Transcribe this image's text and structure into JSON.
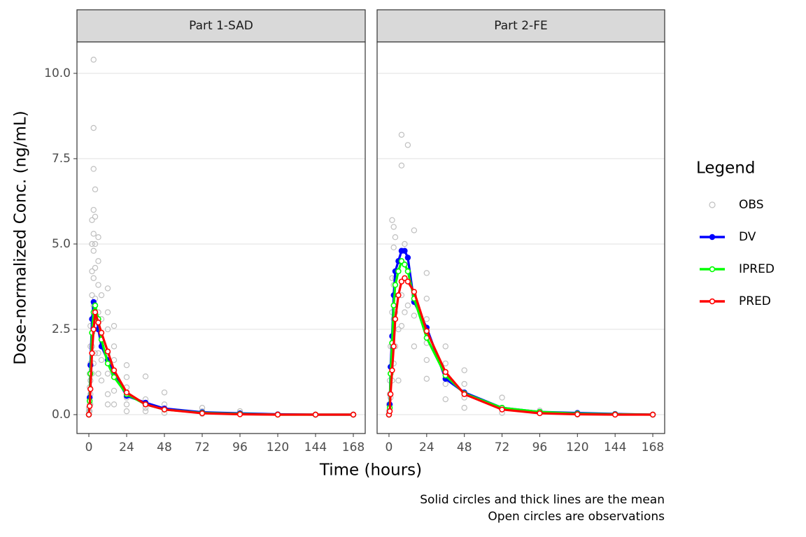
{
  "axes": {
    "x_label": "Time (hours)",
    "y_label": "Dose-normalized Conc. (ng/mL)"
  },
  "legend_title": "Legend",
  "caption": [
    "Solid circles and thick lines are the mean",
    "Open circles are observations"
  ],
  "chart_data": [
    {
      "type": "line",
      "title": "Part 1-SAD",
      "xlim": [
        -7.56,
        175.56
      ],
      "xticks": [
        0,
        24,
        48,
        72,
        96,
        120,
        144,
        168
      ],
      "ylim": [
        -0.553,
        10.92
      ],
      "yticks": [
        {
          "value": 0,
          "label": "0.0"
        },
        2.5,
        {
          "value": 5,
          "label": "5.0"
        },
        7.5,
        {
          "value": 10,
          "label": "10.0"
        }
      ],
      "grid": true,
      "x": [
        0,
        0.5,
        1,
        2,
        3,
        4,
        6,
        8,
        12,
        16,
        24,
        36,
        48,
        72,
        96,
        120,
        144,
        168
      ],
      "series": [
        {
          "name": "DV",
          "color": "#0000ff",
          "marker": "filled",
          "values": [
            0,
            0.5,
            1.45,
            2.8,
            3.3,
            3.2,
            2.5,
            2.0,
            1.6,
            1.2,
            0.55,
            0.35,
            0.18,
            0.07,
            0.04,
            0.01,
            0,
            0
          ]
        },
        {
          "name": "IPRED",
          "color": "#00ff00",
          "marker": "open",
          "values": [
            0,
            0.4,
            1.2,
            2.4,
            3.0,
            3.2,
            2.8,
            2.2,
            1.5,
            1.1,
            0.6,
            0.3,
            0.15,
            0.05,
            0.02,
            0,
            0,
            0
          ]
        },
        {
          "name": "PRED",
          "color": "#ff0000",
          "marker": "open",
          "values": [
            0,
            0.25,
            0.75,
            1.8,
            2.5,
            3.0,
            2.7,
            2.4,
            1.85,
            1.3,
            0.65,
            0.3,
            0.15,
            0.04,
            0.01,
            0,
            0,
            0
          ]
        }
      ],
      "observations": {
        "name": "OBS",
        "color": "#bfbfbf",
        "x": [
          0,
          0,
          0,
          0,
          0,
          0.5,
          0.5,
          0.5,
          0.5,
          0.5,
          1,
          1,
          1,
          1,
          1,
          1,
          2,
          2,
          2,
          2,
          2,
          2,
          2,
          3,
          3,
          3,
          3,
          3,
          3,
          3,
          3,
          3,
          3,
          4,
          4,
          4,
          4,
          4,
          4,
          4,
          6,
          6,
          6,
          6,
          6,
          6,
          6,
          8,
          8,
          8,
          8,
          8,
          12,
          12,
          12,
          12,
          12,
          12,
          12,
          16,
          16,
          16,
          16,
          16,
          16,
          24,
          24,
          24,
          24,
          24,
          24,
          36,
          36,
          36,
          36,
          36,
          48,
          48,
          48,
          48,
          72,
          72,
          72,
          96,
          96,
          120,
          144,
          168
        ],
        "values": [
          0,
          0,
          0,
          0.1,
          0.2,
          0.3,
          0.5,
          0.8,
          1.2,
          0.1,
          0.6,
          1.0,
          1.5,
          2.0,
          2.6,
          0.3,
          1.2,
          2.0,
          2.8,
          3.5,
          4.2,
          5.0,
          5.7,
          1.5,
          2.5,
          3.2,
          4.0,
          4.8,
          5.3,
          6.0,
          7.2,
          8.4,
          10.4,
          1.8,
          2.6,
          3.4,
          4.3,
          5.0,
          5.8,
          6.6,
          1.2,
          1.8,
          2.5,
          3.0,
          3.8,
          4.5,
          5.2,
          1.0,
          1.6,
          2.2,
          2.8,
          3.5,
          0.3,
          0.6,
          1.2,
          1.8,
          2.5,
          3.0,
          3.7,
          0.3,
          0.7,
          1.1,
          1.6,
          2.0,
          2.6,
          0.1,
          0.3,
          0.5,
          0.8,
          1.1,
          1.45,
          0.1,
          0.2,
          0.3,
          0.45,
          1.12,
          0.05,
          0.15,
          0.3,
          0.65,
          0.02,
          0.1,
          0.2,
          0.02,
          0.1,
          0,
          0,
          0
        ]
      }
    },
    {
      "type": "line",
      "title": "Part 2-FE",
      "xlim": [
        -7.56,
        175.56
      ],
      "xticks": [
        0,
        24,
        48,
        72,
        96,
        120,
        144,
        168
      ],
      "ylim": [
        -0.553,
        10.92
      ],
      "yticks": [
        0,
        2.5,
        5,
        7.5,
        10
      ],
      "grid": true,
      "x": [
        0,
        0.5,
        1,
        2,
        3,
        4,
        6,
        8,
        10,
        12,
        16,
        24,
        36,
        48,
        72,
        96,
        120,
        144,
        168
      ],
      "series": [
        {
          "name": "DV",
          "color": "#0000ff",
          "marker": "filled",
          "values": [
            0,
            0.3,
            1.4,
            2.3,
            3.5,
            4.2,
            4.5,
            4.8,
            4.8,
            4.6,
            3.3,
            2.55,
            1.05,
            0.65,
            0.2,
            0.08,
            0.05,
            0.02,
            0
          ]
        },
        {
          "name": "IPRED",
          "color": "#00ff00",
          "marker": "open",
          "values": [
            0,
            0.2,
            1.2,
            2.1,
            3.2,
            3.8,
            4.2,
            4.5,
            4.4,
            4.2,
            3.4,
            2.25,
            1.15,
            0.62,
            0.2,
            0.08,
            0.03,
            0.01,
            0
          ]
        },
        {
          "name": "PRED",
          "color": "#ff0000",
          "marker": "open",
          "values": [
            0,
            0.1,
            0.6,
            1.3,
            2.0,
            2.8,
            3.5,
            3.9,
            4.0,
            3.9,
            3.6,
            2.45,
            1.25,
            0.6,
            0.15,
            0.04,
            0.01,
            0,
            0
          ]
        }
      ],
      "observations": {
        "name": "OBS",
        "color": "#bfbfbf",
        "x": [
          0,
          0,
          0,
          0.5,
          0.5,
          0.5,
          1,
          1,
          1,
          2,
          2,
          2,
          2,
          2,
          3,
          3,
          3,
          3,
          3,
          4,
          4,
          4,
          4,
          6,
          6,
          6,
          6,
          8,
          8,
          8,
          8,
          8,
          10,
          10,
          10,
          12,
          12,
          12,
          16,
          16,
          16,
          16,
          24,
          24,
          24,
          24,
          24,
          24,
          36,
          36,
          36,
          36,
          48,
          48,
          48,
          48,
          72,
          72,
          72,
          96,
          96,
          120,
          144,
          168
        ],
        "values": [
          0,
          0.1,
          0.3,
          0.2,
          0.6,
          1.0,
          0.5,
          1.2,
          2.0,
          1.0,
          2.0,
          3.0,
          4.0,
          5.7,
          1.5,
          2.8,
          3.8,
          4.9,
          5.5,
          2.0,
          3.0,
          4.0,
          5.2,
          1.0,
          2.5,
          3.5,
          4.5,
          2.6,
          3.5,
          4.8,
          7.3,
          8.2,
          3.0,
          4.0,
          5.0,
          3.2,
          4.2,
          7.9,
          2.0,
          2.9,
          3.5,
          5.4,
          1.05,
          1.6,
          2.1,
          2.8,
          3.4,
          4.15,
          0.45,
          0.9,
          1.5,
          2.0,
          0.2,
          0.5,
          0.9,
          1.3,
          0.05,
          0.2,
          0.5,
          0.05,
          0.12,
          0,
          0,
          0
        ]
      }
    }
  ]
}
